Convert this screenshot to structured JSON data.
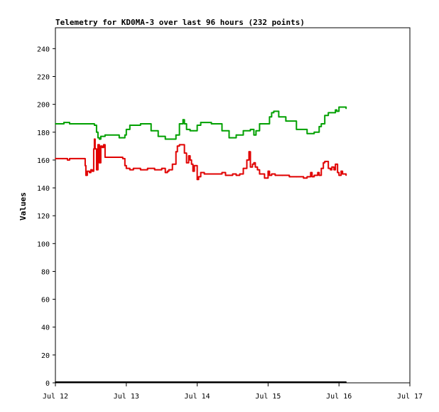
{
  "chart_data": {
    "type": "line",
    "title": "Telemetry for KD0MA-3 over last 96 hours (232 points)",
    "xlabel": "",
    "ylabel": "Values",
    "x_ticks": [
      "Jul 12",
      "Jul 13",
      "Jul 14",
      "Jul 15",
      "Jul 16",
      "Jul 17"
    ],
    "xlim": [
      0,
      5
    ],
    "ylim": [
      0,
      255
    ],
    "y_ticks": [
      0,
      20,
      40,
      60,
      80,
      100,
      120,
      140,
      160,
      180,
      200,
      220,
      240
    ],
    "grid": false,
    "legend": "none",
    "series": [
      {
        "color": "#00a000",
        "x": [
          0.0,
          0.05,
          0.1,
          0.12,
          0.2,
          0.4,
          0.5,
          0.55,
          0.58,
          0.6,
          0.62,
          0.64,
          0.7,
          0.9,
          0.95,
          0.98,
          1.0,
          1.05,
          1.2,
          1.35,
          1.45,
          1.55,
          1.6,
          1.7,
          1.75,
          1.8,
          1.82,
          1.85,
          1.9,
          1.95,
          2.0,
          2.05,
          2.2,
          2.35,
          2.45,
          2.55,
          2.65,
          2.75,
          2.8,
          2.83,
          2.88,
          2.95,
          3.0,
          3.02,
          3.05,
          3.08,
          3.15,
          3.25,
          3.4,
          3.55,
          3.65,
          3.72,
          3.75,
          3.8,
          3.85,
          3.95,
          3.97,
          4.0,
          4.02,
          4.05,
          4.1
        ],
        "y": [
          186,
          186,
          186,
          187,
          186,
          186,
          186,
          185,
          180,
          176,
          175,
          177,
          178,
          176,
          176,
          178,
          182,
          185,
          186,
          181,
          177,
          175,
          175,
          178,
          186,
          189,
          186,
          182,
          181,
          181,
          185,
          187,
          186,
          181,
          176,
          178,
          181,
          182,
          178,
          181,
          186,
          186,
          186,
          191,
          194,
          195,
          191,
          188,
          182,
          179,
          180,
          184,
          186,
          192,
          194,
          196,
          195,
          198,
          198,
          198,
          197
        ]
      },
      {
        "color": "#e00000",
        "x": [
          0.0,
          0.1,
          0.15,
          0.17,
          0.2,
          0.4,
          0.42,
          0.43,
          0.45,
          0.48,
          0.5,
          0.52,
          0.54,
          0.55,
          0.56,
          0.58,
          0.6,
          0.62,
          0.64,
          0.66,
          0.68,
          0.7,
          0.72,
          0.75,
          0.8,
          0.9,
          0.95,
          0.98,
          1.0,
          1.05,
          1.1,
          1.2,
          1.3,
          1.4,
          1.5,
          1.55,
          1.58,
          1.6,
          1.65,
          1.7,
          1.72,
          1.75,
          1.8,
          1.82,
          1.85,
          1.88,
          1.9,
          1.92,
          1.94,
          1.96,
          2.0,
          2.02,
          2.05,
          2.1,
          2.2,
          2.3,
          2.35,
          2.4,
          2.5,
          2.55,
          2.6,
          2.65,
          2.7,
          2.73,
          2.75,
          2.78,
          2.8,
          2.82,
          2.85,
          2.88,
          2.92,
          2.95,
          3.0,
          3.02,
          3.05,
          3.1,
          3.2,
          3.3,
          3.4,
          3.5,
          3.55,
          3.58,
          3.6,
          3.62,
          3.65,
          3.7,
          3.72,
          3.75,
          3.78,
          3.8,
          3.85,
          3.88,
          3.9,
          3.93,
          3.95,
          3.98,
          4.0,
          4.03,
          4.05,
          4.08,
          4.1
        ],
        "y": [
          161,
          161,
          161,
          160,
          161,
          161,
          156,
          149,
          152,
          151,
          153,
          152,
          168,
          175,
          168,
          153,
          171,
          158,
          170,
          169,
          171,
          162,
          162,
          162,
          162,
          162,
          161,
          156,
          154,
          153,
          154,
          153,
          154,
          153,
          154,
          151,
          152,
          153,
          157,
          166,
          170,
          171,
          171,
          165,
          158,
          163,
          160,
          157,
          152,
          156,
          146,
          148,
          151,
          150,
          150,
          150,
          151,
          149,
          150,
          149,
          150,
          154,
          160,
          166,
          155,
          157,
          158,
          155,
          153,
          150,
          150,
          147,
          152,
          149,
          150,
          149,
          149,
          148,
          148,
          147,
          148,
          148,
          151,
          148,
          149,
          151,
          149,
          154,
          158,
          159,
          154,
          153,
          155,
          153,
          157,
          151,
          149,
          152,
          150,
          150,
          149
        ]
      },
      {
        "color": "#000000",
        "x": [
          0.0,
          4.1
        ],
        "y": [
          0.5,
          0.5
        ]
      }
    ]
  }
}
